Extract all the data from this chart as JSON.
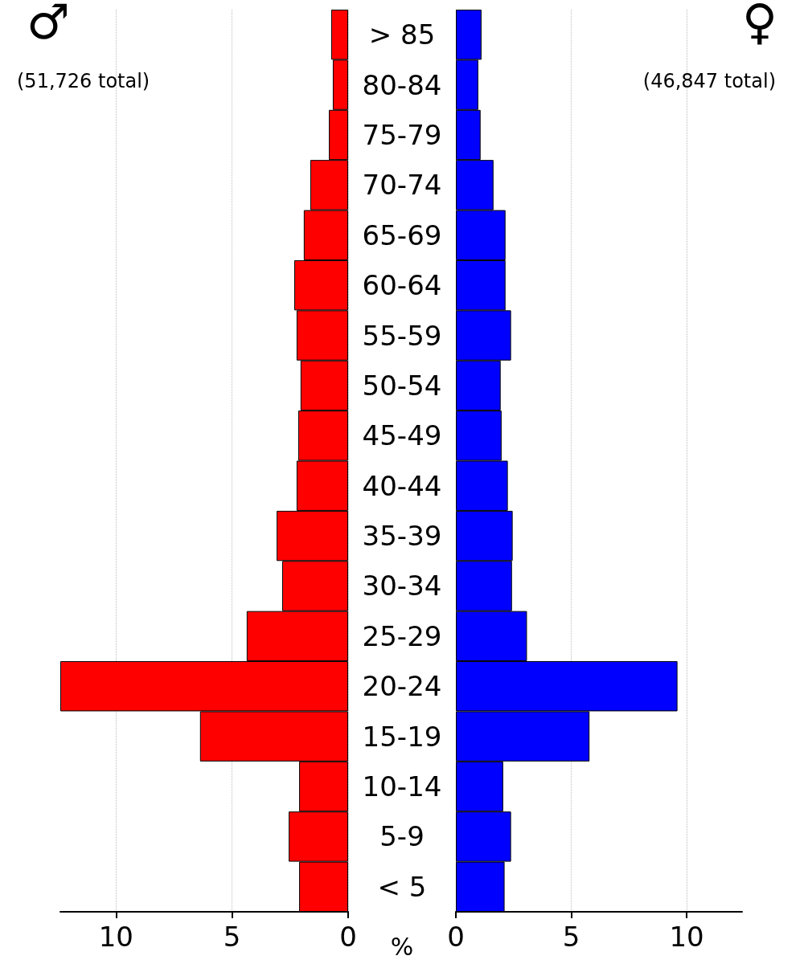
{
  "chart_data": [
    {
      "type": "bar",
      "orientation": "horizontal",
      "title": "♂",
      "subtitle": "(51,726 total)",
      "xlabel": "%",
      "categories": [
        "> 85",
        "80-84",
        "75-79",
        "70-74",
        "65-69",
        "60-64",
        "55-59",
        "50-54",
        "45-49",
        "40-44",
        "35-39",
        "30-34",
        "25-29",
        "20-24",
        "15-19",
        "10-14",
        "5-9",
        "< 5"
      ],
      "values": [
        0.73,
        0.66,
        0.83,
        1.63,
        1.91,
        2.32,
        2.22,
        2.05,
        2.15,
        2.22,
        3.08,
        2.84,
        4.37,
        12.4,
        6.38,
        2.11,
        2.56,
        2.11
      ],
      "color": "#ff0000",
      "xlim": [
        12.4,
        0
      ],
      "xticks": [
        10,
        5,
        0
      ],
      "grid": "x"
    },
    {
      "type": "bar",
      "orientation": "horizontal",
      "title": "♀",
      "subtitle": "(46,847 total)",
      "categories": [
        null,
        null,
        null,
        null,
        null,
        null,
        null,
        null,
        null,
        null,
        null,
        null,
        null,
        null,
        null,
        null,
        null,
        null
      ],
      "values": [
        1.11,
        0.97,
        1.07,
        1.63,
        2.15,
        2.15,
        2.39,
        1.94,
        1.98,
        2.25,
        2.46,
        2.43,
        3.08,
        9.6,
        5.79,
        2.05,
        2.39,
        2.11
      ],
      "color": "#0000ff",
      "xlim": [
        0,
        12.4
      ],
      "xticks": [
        0,
        5,
        10
      ],
      "grid": "x",
      "tick_labels": "x"
    }
  ]
}
